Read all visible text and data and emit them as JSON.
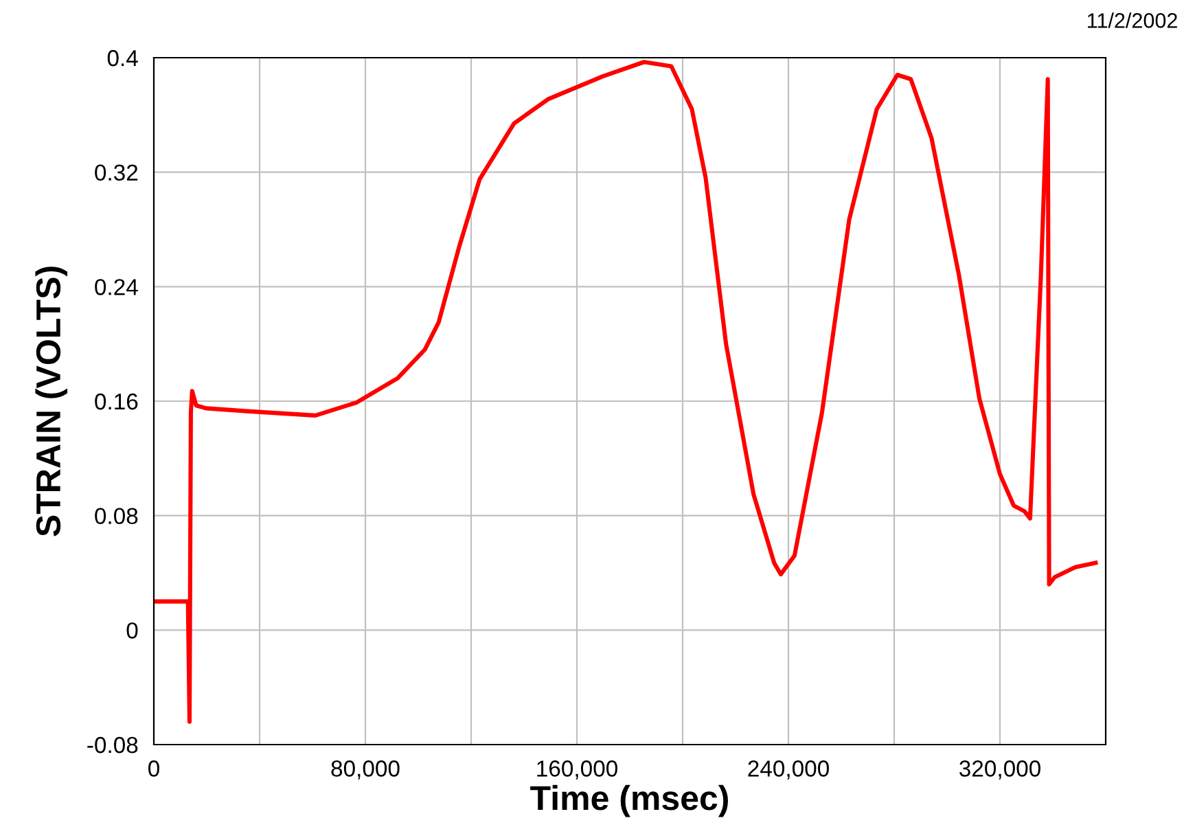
{
  "chart_data": {
    "type": "line",
    "xlabel": "Time (msec)",
    "ylabel": "STRAIN (VOLTS)",
    "annotations": [
      "11/2/2002"
    ],
    "x": [
      0,
      12900,
      13500,
      14000,
      14500,
      16000,
      19700,
      35200,
      61100,
      76600,
      92200,
      102500,
      107700,
      115500,
      123200,
      136200,
      149100,
      169800,
      185400,
      195700,
      203500,
      208700,
      216400,
      226800,
      234600,
      237100,
      242300,
      252700,
      263000,
      273400,
      281200,
      286300,
      294100,
      304500,
      312200,
      320000,
      325200,
      329300,
      331400,
      335500,
      338100,
      338600,
      340700,
      348500,
      356200
    ],
    "series": [
      {
        "color": "#ff0000",
        "values": [
          0.02,
          0.02,
          -0.064,
          0.152,
          0.167,
          0.157,
          0.155,
          0.153,
          0.15,
          0.159,
          0.176,
          0.196,
          0.215,
          0.268,
          0.315,
          0.354,
          0.371,
          0.387,
          0.397,
          0.394,
          0.364,
          0.316,
          0.2,
          0.095,
          0.047,
          0.039,
          0.052,
          0.152,
          0.287,
          0.364,
          0.388,
          0.385,
          0.344,
          0.248,
          0.162,
          0.109,
          0.087,
          0.083,
          0.078,
          0.248,
          0.385,
          0.032,
          0.037,
          0.044,
          0.047
        ]
      }
    ],
    "xlim": [
      0,
      360000
    ],
    "ylim": [
      -0.08,
      0.4
    ],
    "xticks": [
      {
        "value": 0,
        "label": "0"
      },
      {
        "value": 40000,
        "label": null
      },
      {
        "value": 80000,
        "label": "80,000"
      },
      {
        "value": 120000,
        "label": null
      },
      {
        "value": 160000,
        "label": "160,000"
      },
      {
        "value": 200000,
        "label": null
      },
      {
        "value": 240000,
        "label": "240,000"
      },
      {
        "value": 280000,
        "label": null
      },
      {
        "value": 320000,
        "label": "320,000"
      }
    ],
    "yticks": [
      -0.08,
      0,
      0.08,
      0.16,
      0.24,
      0.32,
      0.4
    ],
    "grid": true,
    "legend": false,
    "marker": "none",
    "line_style": "solid"
  }
}
